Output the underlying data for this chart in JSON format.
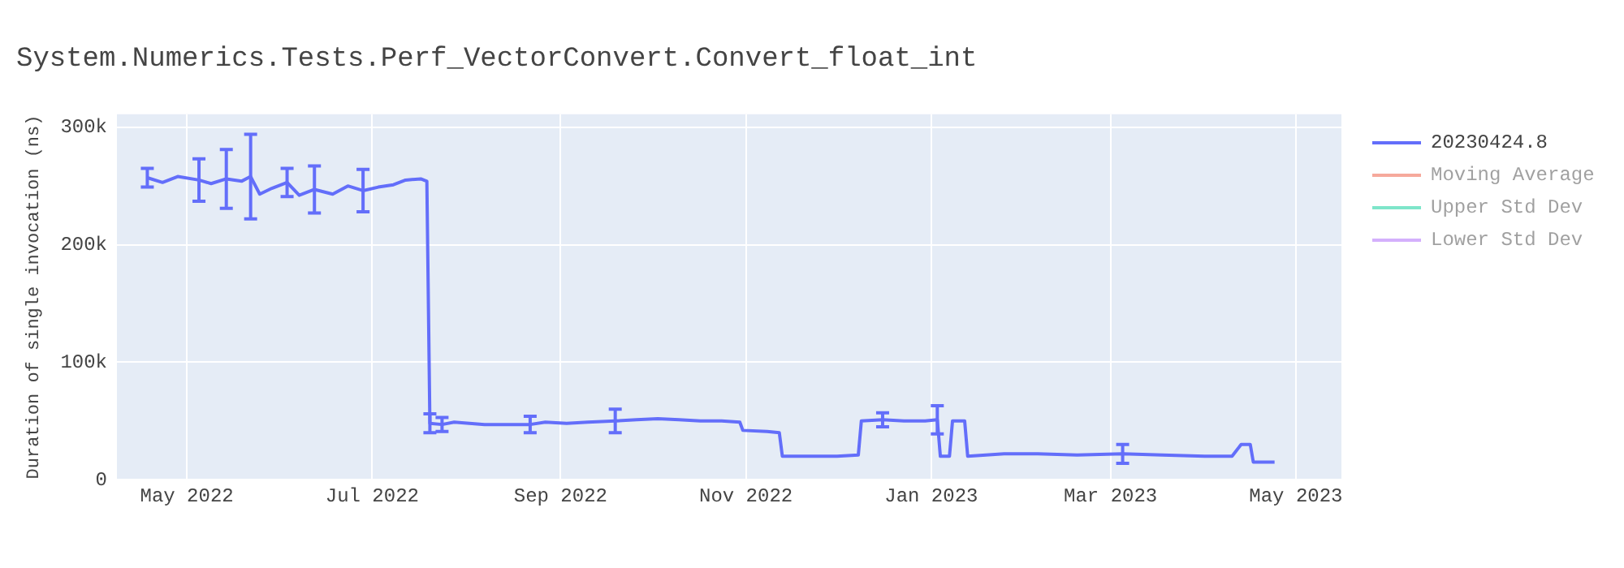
{
  "chart_data": {
    "type": "line",
    "title": "System.Numerics.Tests.Perf_VectorConvert.Convert_float_int",
    "ylabel": "Duration of single invocation (ns)",
    "x": [
      "2022-04-18",
      "2022-04-23",
      "2022-04-28",
      "2022-05-05",
      "2022-05-09",
      "2022-05-14",
      "2022-05-19",
      "2022-05-22",
      "2022-05-25",
      "2022-05-29",
      "2022-06-03",
      "2022-06-07",
      "2022-06-12",
      "2022-06-18",
      "2022-06-23",
      "2022-06-28",
      "2022-07-03",
      "2022-07-08",
      "2022-07-12",
      "2022-07-17",
      "2022-07-19",
      "2022-07-20",
      "2022-07-24",
      "2022-07-28",
      "2022-08-02",
      "2022-08-07",
      "2022-08-22",
      "2022-08-27",
      "2022-09-03",
      "2022-09-10",
      "2022-09-19",
      "2022-09-26",
      "2022-10-03",
      "2022-10-10",
      "2022-10-17",
      "2022-10-24",
      "2022-10-30",
      "2022-10-31",
      "2022-11-08",
      "2022-11-12",
      "2022-11-13",
      "2022-11-22",
      "2022-12-01",
      "2022-12-08",
      "2022-12-09",
      "2022-12-16",
      "2022-12-23",
      "2022-12-30",
      "2023-01-03",
      "2023-01-04",
      "2023-01-07",
      "2023-01-08",
      "2023-01-12",
      "2023-01-13",
      "2023-01-25",
      "2023-02-05",
      "2023-02-18",
      "2023-03-05",
      "2023-03-18",
      "2023-04-01",
      "2023-04-10",
      "2023-04-13",
      "2023-04-16",
      "2023-04-17",
      "2023-04-24"
    ],
    "xlim": [
      "2022-04-08",
      "2023-05-16"
    ],
    "xticks": [
      {
        "value": "2022-05-01",
        "label": "May 2022"
      },
      {
        "value": "2022-07-01",
        "label": "Jul 2022"
      },
      {
        "value": "2022-09-01",
        "label": "Sep 2022"
      },
      {
        "value": "2022-11-01",
        "label": "Nov 2022"
      },
      {
        "value": "2023-01-01",
        "label": "Jan 2023"
      },
      {
        "value": "2023-03-01",
        "label": "Mar 2023"
      },
      {
        "value": "2023-05-01",
        "label": "May 2023"
      }
    ],
    "ylim": [
      0,
      311000
    ],
    "yticks": [
      {
        "value": 0,
        "label": "0"
      },
      {
        "value": 100000,
        "label": "100k"
      },
      {
        "value": 200000,
        "label": "200k"
      },
      {
        "value": 300000,
        "label": "300k"
      }
    ],
    "grid": true,
    "legend": "top right",
    "marker": "none",
    "line_style": "solid",
    "series": [
      {
        "name": "20230424.8",
        "color": "#636efa",
        "values": [
          257000,
          253000,
          258000,
          255000,
          252000,
          256000,
          254000,
          258000,
          243000,
          248000,
          253000,
          242000,
          247000,
          243000,
          250000,
          246000,
          249000,
          251000,
          255000,
          256000,
          254000,
          48000,
          47000,
          49000,
          48000,
          47000,
          47000,
          49000,
          48000,
          49000,
          50000,
          51000,
          52000,
          51000,
          50000,
          50000,
          49000,
          42000,
          41000,
          40000,
          20000,
          20000,
          20000,
          21000,
          50000,
          51000,
          50000,
          50000,
          51000,
          20000,
          20000,
          50000,
          50000,
          20000,
          22000,
          22000,
          21000,
          22000,
          21000,
          20000,
          20000,
          30000,
          30000,
          15000,
          15000
        ],
        "errors": [
          8000,
          null,
          null,
          18000,
          null,
          25000,
          null,
          36000,
          null,
          null,
          12000,
          null,
          20000,
          null,
          null,
          18000,
          null,
          null,
          null,
          null,
          null,
          8000,
          6000,
          null,
          null,
          null,
          7000,
          null,
          null,
          null,
          10000,
          null,
          null,
          null,
          null,
          null,
          null,
          null,
          null,
          null,
          null,
          null,
          null,
          null,
          null,
          6000,
          null,
          null,
          12000,
          null,
          null,
          null,
          null,
          null,
          null,
          null,
          null,
          8000,
          null,
          null,
          null,
          null,
          null,
          null,
          null
        ]
      },
      {
        "name": "Moving Average",
        "color": "#ef553b",
        "values": [
          null,
          null,
          null,
          null,
          null,
          null,
          null,
          null,
          null,
          null,
          null,
          null,
          null,
          null,
          null,
          null,
          null,
          null,
          null,
          null,
          null,
          null,
          null,
          null,
          null,
          null,
          null,
          null,
          null,
          null,
          null,
          null,
          null,
          null,
          null,
          null,
          null,
          null,
          null,
          null,
          null,
          null,
          null,
          null,
          null,
          null,
          null,
          null,
          null,
          null,
          null,
          null,
          null,
          null,
          null,
          null,
          null,
          null,
          null,
          null,
          null,
          null,
          null,
          null,
          null
        ]
      },
      {
        "name": "Upper Std Dev",
        "color": "#00cc96",
        "values": [
          null,
          null,
          null,
          null,
          null,
          null,
          null,
          null,
          null,
          null,
          null,
          null,
          null,
          null,
          null,
          null,
          null,
          null,
          null,
          null,
          null,
          null,
          null,
          null,
          null,
          null,
          null,
          null,
          null,
          null,
          null,
          null,
          null,
          null,
          null,
          null,
          null,
          null,
          null,
          null,
          null,
          null,
          null,
          null,
          null,
          null,
          null,
          null,
          null,
          null,
          null,
          null,
          null,
          null,
          null,
          null,
          null,
          null,
          null,
          null,
          null,
          null,
          null,
          null,
          null
        ]
      },
      {
        "name": "Lower Std Dev",
        "color": "#ab63fa",
        "values": [
          null,
          null,
          null,
          null,
          null,
          null,
          null,
          null,
          null,
          null,
          null,
          null,
          null,
          null,
          null,
          null,
          null,
          null,
          null,
          null,
          null,
          null,
          null,
          null,
          null,
          null,
          null,
          null,
          null,
          null,
          null,
          null,
          null,
          null,
          null,
          null,
          null,
          null,
          null,
          null,
          null,
          null,
          null,
          null,
          null,
          null,
          null,
          null,
          null,
          null,
          null,
          null,
          null,
          null,
          null,
          null,
          null,
          null,
          null,
          null,
          null,
          null,
          null,
          null,
          null
        ]
      }
    ]
  }
}
